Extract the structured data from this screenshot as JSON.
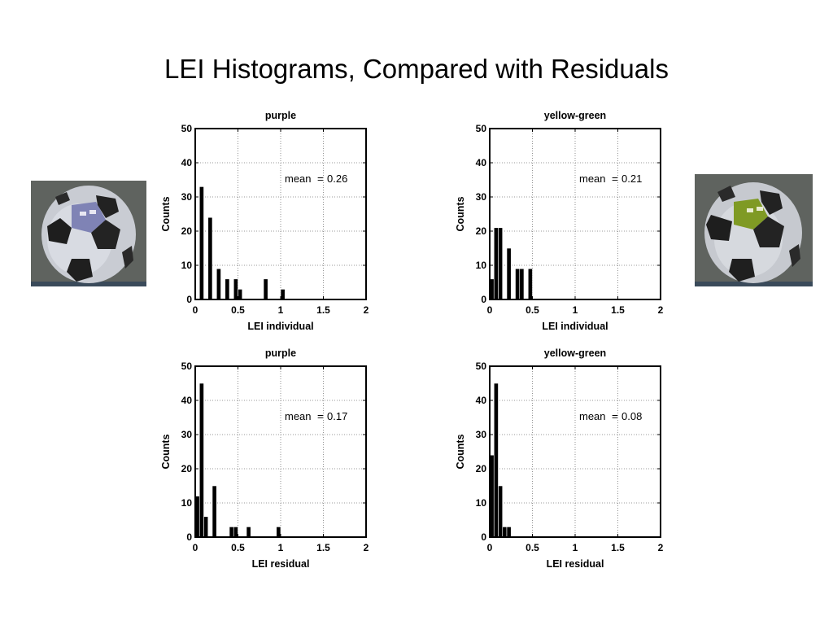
{
  "title": "LEI Histograms, Compared with Residuals",
  "images": [
    {
      "name": "purple-patch-soccer-ball",
      "patch_color": "#7f83b5"
    },
    {
      "name": "yellow-green-patch-soccer-ball",
      "patch_color": "#7f9a24"
    }
  ],
  "chart_data": [
    {
      "type": "bar",
      "title": "purple",
      "xlabel": "LEI individual",
      "ylabel": "Counts",
      "xlim": [
        0,
        2
      ],
      "ylim": [
        0,
        50
      ],
      "xticks": [
        "0",
        "0.5",
        "1",
        "1.5",
        "2"
      ],
      "yticks": [
        "0",
        "10",
        "20",
        "30",
        "40",
        "50"
      ],
      "grid": true,
      "bin_width": 0.05,
      "bins": [
        0.075,
        0.125,
        0.175,
        0.225,
        0.275,
        0.325,
        0.375,
        0.425,
        0.475,
        0.525,
        0.575,
        0.625,
        0.675,
        0.725,
        0.775,
        0.825,
        0.875,
        0.925,
        0.975,
        1.025
      ],
      "values": [
        33,
        0,
        24,
        0,
        9,
        0,
        6,
        0,
        6,
        3,
        0,
        0,
        0,
        0,
        0,
        6,
        0,
        0,
        0,
        3
      ],
      "annotation": {
        "label": "mean",
        "eq": "=",
        "value": "0.26"
      }
    },
    {
      "type": "bar",
      "title": "yellow-green",
      "xlabel": "LEI individual",
      "ylabel": "Counts",
      "xlim": [
        0,
        2
      ],
      "ylim": [
        0,
        50
      ],
      "xticks": [
        "0",
        "0.5",
        "1",
        "1.5",
        "2"
      ],
      "yticks": [
        "0",
        "10",
        "20",
        "30",
        "40",
        "50"
      ],
      "grid": true,
      "bin_width": 0.05,
      "bins": [
        0.025,
        0.075,
        0.125,
        0.175,
        0.225,
        0.275,
        0.325,
        0.375,
        0.425,
        0.475
      ],
      "values": [
        6,
        21,
        21,
        0,
        15,
        0,
        9,
        9,
        0,
        9
      ],
      "annotation": {
        "label": "mean",
        "eq": "=",
        "value": "0.21"
      }
    },
    {
      "type": "bar",
      "title": "purple",
      "xlabel": "LEI residual",
      "ylabel": "Counts",
      "xlim": [
        0,
        2
      ],
      "ylim": [
        0,
        50
      ],
      "xticks": [
        "0",
        "0.5",
        "1",
        "1.5",
        "2"
      ],
      "yticks": [
        "0",
        "10",
        "20",
        "30",
        "40",
        "50"
      ],
      "grid": true,
      "bin_width": 0.05,
      "bins": [
        0.025,
        0.075,
        0.125,
        0.175,
        0.225,
        0.425,
        0.475,
        0.625,
        0.975
      ],
      "values": [
        12,
        45,
        6,
        0,
        15,
        3,
        3,
        3,
        3
      ],
      "annotation": {
        "label": "mean",
        "eq": "=",
        "value": "0.17"
      }
    },
    {
      "type": "bar",
      "title": "yellow-green",
      "xlabel": "LEI residual",
      "ylabel": "Counts",
      "xlim": [
        0,
        2
      ],
      "ylim": [
        0,
        50
      ],
      "xticks": [
        "0",
        "0.5",
        "1",
        "1.5",
        "2"
      ],
      "yticks": [
        "0",
        "10",
        "20",
        "30",
        "40",
        "50"
      ],
      "grid": true,
      "bin_width": 0.05,
      "bins": [
        0.025,
        0.075,
        0.125,
        0.175,
        0.225
      ],
      "values": [
        24,
        45,
        15,
        3,
        3
      ],
      "annotation": {
        "label": "mean",
        "eq": "=",
        "value": "0.08"
      }
    }
  ]
}
